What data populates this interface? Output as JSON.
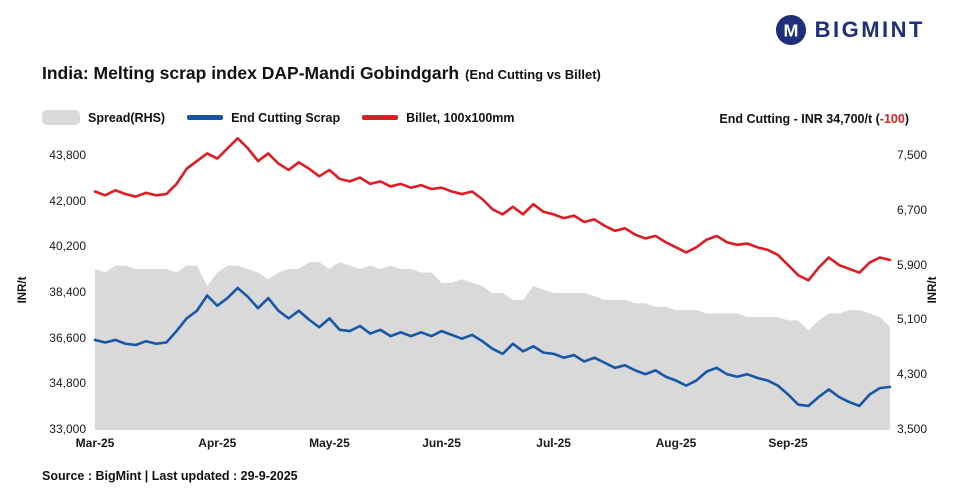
{
  "logo": {
    "text": "BIGMINT"
  },
  "title": {
    "main": "India: Melting scrap index DAP-Mandi Gobindgarh",
    "sub": "(End Cutting vs Billet)"
  },
  "legend": [
    {
      "label": "Spread(RHS)",
      "color": "#d9d9d9",
      "type": "area"
    },
    {
      "label": "End Cutting Scrap",
      "color": "#1757a6",
      "type": "line"
    },
    {
      "label": "Billet, 100x100mm",
      "color": "#e11b22",
      "type": "line"
    }
  ],
  "annotation": {
    "prefix": "End Cutting - INR 34,700/t (",
    "change": "-100",
    "suffix": ")"
  },
  "source": "Source : BigMint | Last updated : 29-9-2025",
  "colors": {
    "billet_red": "#e11b22",
    "scrap_blue": "#1757a6",
    "spread_gray": "#d9d9d9",
    "logo_navy": "#1e2f7c",
    "negative_red": "#e11b22"
  },
  "chart_data": {
    "type": "line",
    "title": "India: Melting scrap index DAP-Mandi Gobindgarh (End Cutting vs Billet)",
    "grid": false,
    "legend_position": "top-left",
    "x_tick_labels": [
      "Mar-25",
      "Apr-25",
      "May-25",
      "Jun-25",
      "Jul-25",
      "Aug-25",
      "Sep-25"
    ],
    "x_tick_indices": [
      0,
      12,
      23,
      34,
      45,
      57,
      68
    ],
    "left_axis": {
      "label": "INR/t",
      "min": 33000,
      "max": 43800,
      "ticks": [
        "43,800",
        "42,000",
        "40,200",
        "38,400",
        "36,600",
        "34,800",
        "33,000"
      ]
    },
    "right_axis": {
      "label": "INR/t",
      "min": 3500,
      "max": 7500,
      "ticks": [
        "7,500",
        "6,700",
        "5,900",
        "5,100",
        "4,300",
        "3,500"
      ]
    },
    "series": [
      {
        "name": "Spread(RHS)",
        "type": "area",
        "axis": "right",
        "color": "#d9d9d9",
        "note": "Spread = Billet minus End Cutting Scrap, plotted on right axis",
        "values": [
          5850,
          5800,
          5900,
          5900,
          5850,
          5850,
          5850,
          5850,
          5800,
          5900,
          5900,
          5600,
          5800,
          5900,
          5900,
          5850,
          5800,
          5700,
          5800,
          5850,
          5850,
          5950,
          5950,
          5850,
          5950,
          5900,
          5850,
          5900,
          5850,
          5900,
          5850,
          5850,
          5800,
          5800,
          5650,
          5650,
          5700,
          5650,
          5600,
          5500,
          5500,
          5400,
          5400,
          5600,
          5550,
          5500,
          5500,
          5500,
          5500,
          5450,
          5400,
          5400,
          5400,
          5350,
          5350,
          5300,
          5300,
          5250,
          5250,
          5250,
          5200,
          5200,
          5200,
          5200,
          5150,
          5150,
          5150,
          5150,
          5100,
          5100,
          4950,
          5100,
          5200,
          5200,
          5250,
          5250,
          5200,
          5150,
          5000
        ]
      },
      {
        "name": "End Cutting Scrap",
        "type": "line",
        "axis": "left",
        "color": "#1757a6",
        "last_value": 34700,
        "values": [
          36550,
          36450,
          36550,
          36400,
          36350,
          36500,
          36400,
          36450,
          36900,
          37400,
          37700,
          38300,
          37900,
          38200,
          38600,
          38250,
          37800,
          38200,
          37700,
          37400,
          37700,
          37350,
          37050,
          37400,
          36950,
          36900,
          37100,
          36800,
          36950,
          36700,
          36850,
          36700,
          36850,
          36700,
          36900,
          36750,
          36600,
          36750,
          36500,
          36200,
          36000,
          36400,
          36100,
          36300,
          36050,
          36000,
          35850,
          35950,
          35700,
          35850,
          35650,
          35450,
          35550,
          35350,
          35200,
          35350,
          35100,
          34950,
          34750,
          34950,
          35300,
          35450,
          35200,
          35100,
          35200,
          35050,
          34950,
          34750,
          34400,
          34000,
          33950,
          34300,
          34600,
          34300,
          34100,
          33950,
          34400,
          34650,
          34700
        ]
      },
      {
        "name": "Billet, 100x100mm",
        "type": "line",
        "axis": "left",
        "color": "#e11b22",
        "values": [
          42400,
          42250,
          42450,
          42300,
          42200,
          42350,
          42250,
          42300,
          42700,
          43300,
          43600,
          43900,
          43700,
          44100,
          44500,
          44100,
          43600,
          43900,
          43500,
          43250,
          43550,
          43300,
          43000,
          43250,
          42900,
          42800,
          42950,
          42700,
          42800,
          42600,
          42700,
          42550,
          42650,
          42500,
          42550,
          42400,
          42300,
          42400,
          42100,
          41700,
          41500,
          41800,
          41500,
          41900,
          41600,
          41500,
          41350,
          41450,
          41200,
          41300,
          41050,
          40850,
          40950,
          40700,
          40550,
          40650,
          40400,
          40200,
          40000,
          40200,
          40500,
          40650,
          40400,
          40300,
          40350,
          40200,
          40100,
          39900,
          39500,
          39100,
          38900,
          39400,
          39800,
          39500,
          39350,
          39200,
          39600,
          39800,
          39700
        ]
      }
    ]
  }
}
